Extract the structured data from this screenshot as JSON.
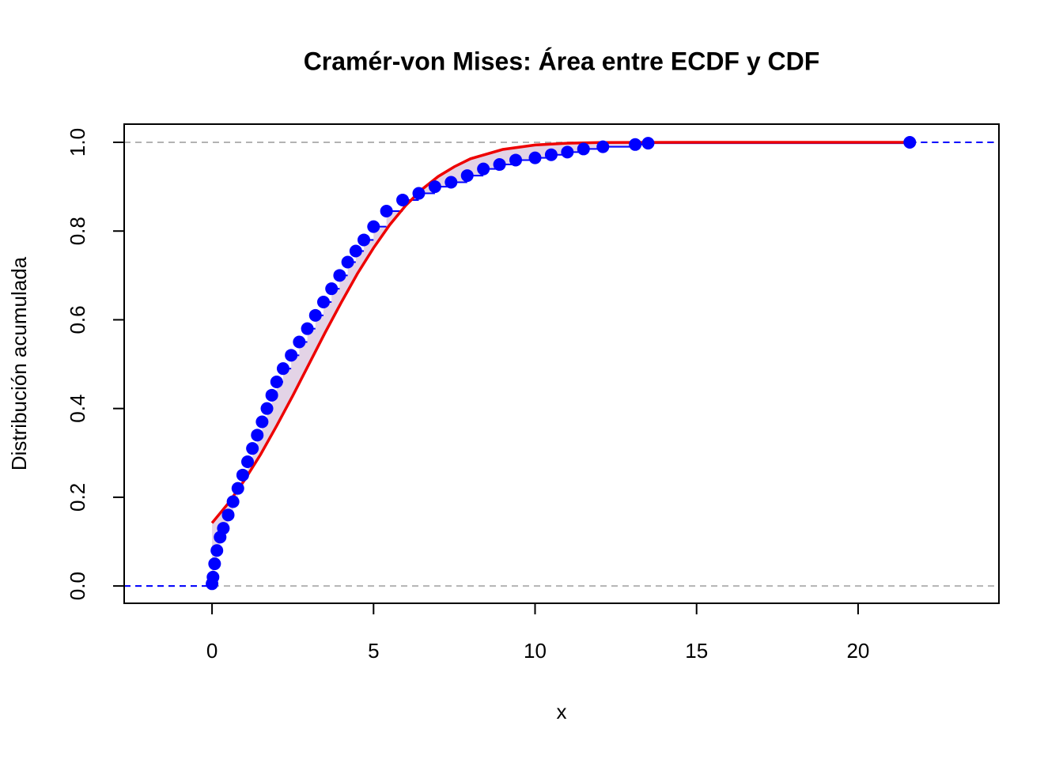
{
  "chart_data": {
    "type": "ecdf",
    "title": "Cramér-von Mises: Área entre ECDF y CDF",
    "xlabel": "x",
    "ylabel": "Distribución acumulada",
    "xlim": [
      -2.72,
      24.36
    ],
    "ylim": [
      -0.039,
      1.041
    ],
    "xticks": [
      0,
      5,
      10,
      15,
      20
    ],
    "yticks": [
      {
        "value": 0,
        "label": "0.0"
      },
      {
        "value": 0.2,
        "label": "0.2"
      },
      {
        "value": 0.4,
        "label": "0.4"
      },
      {
        "value": 0.6,
        "label": "0.6"
      },
      {
        "value": 0.8,
        "label": "0.8"
      },
      {
        "value": 1,
        "label": "1.0"
      }
    ],
    "hlines": [
      0,
      1
    ],
    "hline_color": "#b3b3b3",
    "fill_color": "#e3d3e6",
    "series": [
      {
        "color": "#0000ff",
        "step": true,
        "x": [
          0,
          0.03,
          0.08,
          0.15,
          0.25,
          0.35,
          0.5,
          0.65,
          0.8,
          0.95,
          1.1,
          1.25,
          1.4,
          1.55,
          1.7,
          1.85,
          2.0,
          2.2,
          2.45,
          2.7,
          2.95,
          3.2,
          3.45,
          3.7,
          3.95,
          4.2,
          4.45,
          4.7,
          5.0,
          5.4,
          5.9,
          6.4,
          6.9,
          7.4,
          7.9,
          8.4,
          8.9,
          9.4,
          10.0,
          10.5,
          11.0,
          11.5,
          12.1,
          13.1,
          13.5,
          21.6
        ],
        "values": [
          0.005,
          0.02,
          0.05,
          0.08,
          0.11,
          0.13,
          0.16,
          0.19,
          0.22,
          0.25,
          0.28,
          0.31,
          0.34,
          0.37,
          0.4,
          0.43,
          0.46,
          0.49,
          0.52,
          0.55,
          0.58,
          0.61,
          0.64,
          0.67,
          0.7,
          0.73,
          0.755,
          0.78,
          0.81,
          0.845,
          0.87,
          0.885,
          0.9,
          0.91,
          0.925,
          0.94,
          0.95,
          0.96,
          0.965,
          0.972,
          0.978,
          0.985,
          0.99,
          0.995,
          0.998,
          1.0
        ]
      },
      {
        "color": "#ee0000",
        "x": [
          0,
          0.5,
          1,
          1.5,
          2,
          2.5,
          3,
          3.5,
          4,
          4.5,
          5,
          5.5,
          6,
          6.5,
          7,
          7.5,
          8,
          9,
          10,
          11,
          12,
          13,
          15,
          21.6
        ],
        "values": [
          0.142,
          0.186,
          0.238,
          0.296,
          0.361,
          0.429,
          0.5,
          0.571,
          0.639,
          0.704,
          0.762,
          0.814,
          0.858,
          0.894,
          0.923,
          0.945,
          0.963,
          0.984,
          0.994,
          0.998,
          0.9995,
          0.9998,
          1.0,
          1.0
        ]
      }
    ]
  }
}
